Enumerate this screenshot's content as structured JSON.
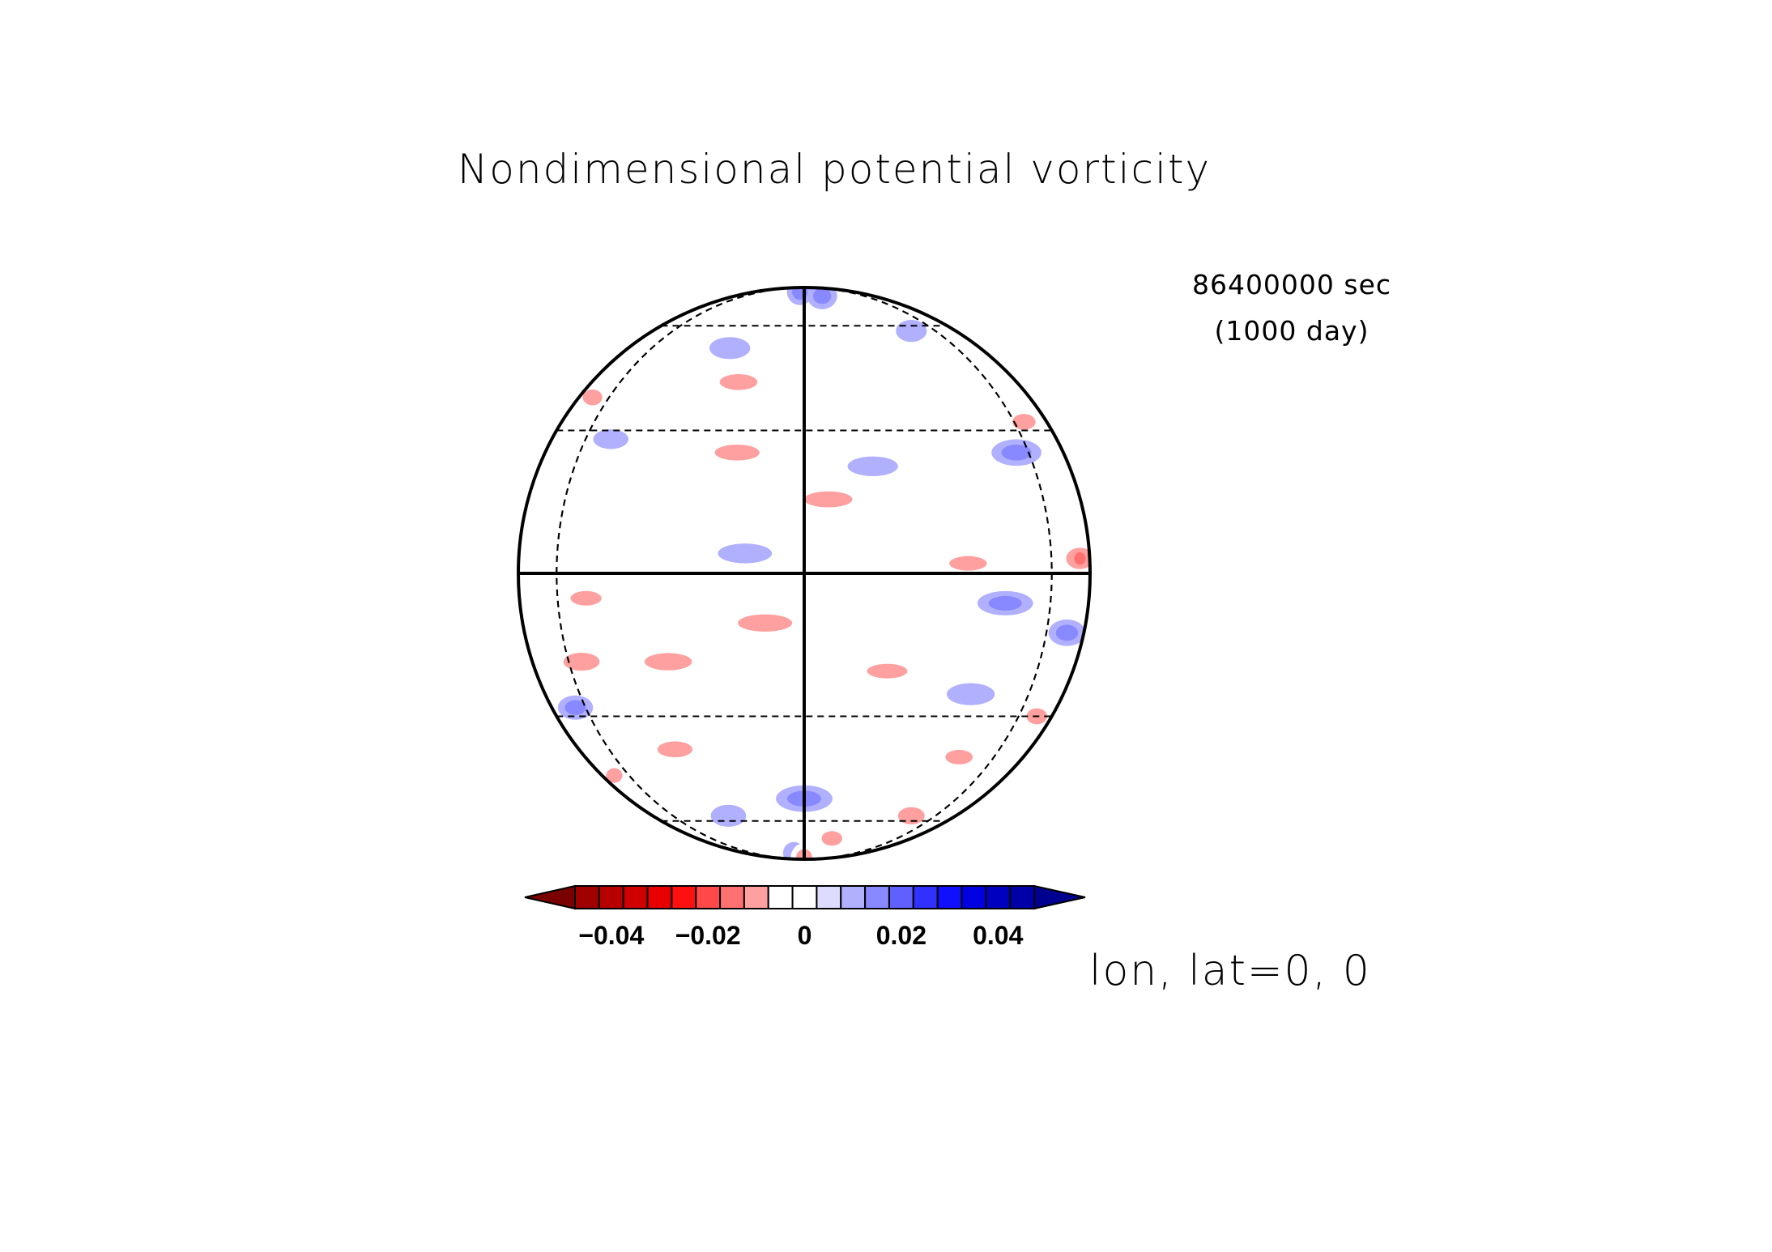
{
  "chart_data": {
    "type": "heatmap",
    "projection": "orthographic",
    "title": "Nondimensional potential vorticity",
    "time_label": "86400000 sec",
    "time_sublabel": "(1000 day)",
    "center_label": "lon, lat=0, 0",
    "grid": true,
    "graticule": {
      "lat_lines_deg": [
        -60,
        -30,
        0,
        30,
        60
      ],
      "lon_lines_deg": [
        -60,
        0,
        60
      ]
    },
    "colorbar": {
      "orientation": "horizontal",
      "placement": "bottom",
      "extend": "both",
      "levels_min": -0.05,
      "level_step": 0.005,
      "tick_values": [
        -0.04,
        -0.02,
        0,
        0.02,
        0.04
      ],
      "tick_labels": [
        "−0.04",
        "−0.02",
        "0",
        "0.02",
        "0.04"
      ],
      "under_color": "#7a0000",
      "over_color": "#000090",
      "colors": [
        "#a00000",
        "#b80000",
        "#d00000",
        "#e80000",
        "#ff1010",
        "#ff4848",
        "#ff7070",
        "#ffa0a0",
        "#ffffff",
        "#ffffff",
        "#dcdcff",
        "#b0b0ff",
        "#8888ff",
        "#6060ff",
        "#3030ff",
        "#1010ff",
        "#0000e0",
        "#0000c0",
        "#0000a8"
      ]
    },
    "features": [
      {
        "lon": -5,
        "lat": 80,
        "value": 0.012
      },
      {
        "lon": 15,
        "lat": 76,
        "value": 0.012
      },
      {
        "lon": -60,
        "lat": 60,
        "value": -0.008
      },
      {
        "lon": 45,
        "lat": 58,
        "value": 0.008
      },
      {
        "lon": -25,
        "lat": 52,
        "value": 0.008
      },
      {
        "lon": -18,
        "lat": 42,
        "value": -0.012
      },
      {
        "lon": 15,
        "lat": 40,
        "value": -0.008
      },
      {
        "lon": -70,
        "lat": 38,
        "value": -0.012
      },
      {
        "lon": 65,
        "lat": 32,
        "value": -0.012
      },
      {
        "lon": -50,
        "lat": 28,
        "value": 0.006
      },
      {
        "lon": 55,
        "lat": 25,
        "value": 0.012
      },
      {
        "lon": -38,
        "lat": 20,
        "value": -0.008
      },
      {
        "lon": 15,
        "lat": 22,
        "value": 0.006
      },
      {
        "lon": -15,
        "lat": 25,
        "value": -0.012
      },
      {
        "lon": 5,
        "lat": 15,
        "value": -0.012
      },
      {
        "lon": 50,
        "lat": 15,
        "value": -0.008
      },
      {
        "lon": -40,
        "lat": 10,
        "value": -0.008
      },
      {
        "lon": 75,
        "lat": 3,
        "value": -0.02
      },
      {
        "lon": 35,
        "lat": 2,
        "value": -0.01
      },
      {
        "lon": -12,
        "lat": 4,
        "value": 0.006
      },
      {
        "lon": -50,
        "lat": -5,
        "value": -0.01
      },
      {
        "lon": -8,
        "lat": -10,
        "value": -0.014
      },
      {
        "lon": 45,
        "lat": -6,
        "value": 0.01
      },
      {
        "lon": 70,
        "lat": -12,
        "value": 0.012
      },
      {
        "lon": -55,
        "lat": -18,
        "value": -0.015
      },
      {
        "lon": -30,
        "lat": -18,
        "value": -0.014
      },
      {
        "lon": 18,
        "lat": -20,
        "value": -0.01
      },
      {
        "lon": -65,
        "lat": -28,
        "value": 0.01
      },
      {
        "lon": 40,
        "lat": -25,
        "value": 0.008
      },
      {
        "lon": 70,
        "lat": -30,
        "value": -0.012
      },
      {
        "lon": -35,
        "lat": -38,
        "value": -0.012
      },
      {
        "lon": 10,
        "lat": -35,
        "value": -0.008
      },
      {
        "lon": 45,
        "lat": -40,
        "value": -0.01
      },
      {
        "lon": -70,
        "lat": -45,
        "value": -0.01
      },
      {
        "lon": 0,
        "lat": -52,
        "value": 0.012
      },
      {
        "lon": -30,
        "lat": -58,
        "value": 0.008
      },
      {
        "lon": 45,
        "lat": -58,
        "value": -0.014
      },
      {
        "lon": 15,
        "lat": -68,
        "value": -0.01
      },
      {
        "lon": -10,
        "lat": -78,
        "value": 0.008
      },
      {
        "lon": 0,
        "lat": -84,
        "value": -0.014
      }
    ]
  }
}
